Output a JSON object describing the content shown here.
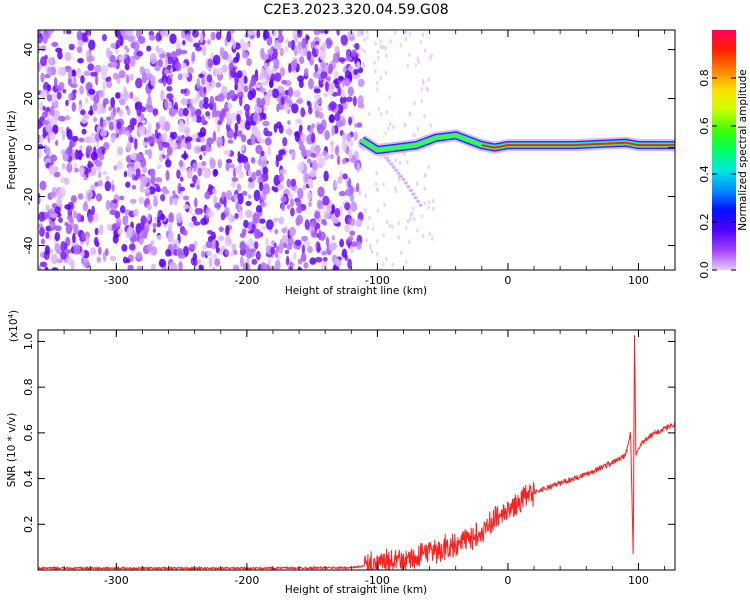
{
  "title": "C2E3.2023.320.04.59.G08",
  "chart_data": [
    {
      "type": "heatmap",
      "xlabel": "Height of straight line (km)",
      "ylabel": "Frequency (Hz)",
      "xlim": [
        -360,
        128
      ],
      "ylim": [
        -50,
        48
      ],
      "x_ticks": [
        -300,
        -200,
        -100,
        0,
        100
      ],
      "y_ticks": [
        -40,
        -20,
        0,
        20,
        40
      ],
      "colorbar": {
        "label": "Normalized spectral amplitude",
        "range": [
          0,
          1
        ],
        "ticks": [
          0.0,
          0.2,
          0.4,
          0.6,
          0.8
        ],
        "colors": [
          "#e8ccff",
          "#a040ff",
          "#5000ff",
          "#0010ff",
          "#0090ff",
          "#00e8e0",
          "#00ff60",
          "#40ff00",
          "#c8ff00",
          "#ffe000",
          "#ff8000",
          "#ff2000",
          "#ff0060"
        ]
      },
      "noise_region_x": [
        -360,
        -112
      ],
      "signal_track": [
        {
          "x": -112,
          "y": 3
        },
        {
          "x": -100,
          "y": -1
        },
        {
          "x": -85,
          "y": 0
        },
        {
          "x": -70,
          "y": 1
        },
        {
          "x": -55,
          "y": 4
        },
        {
          "x": -40,
          "y": 5
        },
        {
          "x": -30,
          "y": 3
        },
        {
          "x": -20,
          "y": 1
        },
        {
          "x": -10,
          "y": 0
        },
        {
          "x": 0,
          "y": 1
        },
        {
          "x": 20,
          "y": 1
        },
        {
          "x": 50,
          "y": 1
        },
        {
          "x": 90,
          "y": 2
        },
        {
          "x": 100,
          "y": 1
        },
        {
          "x": 128,
          "y": 1
        }
      ],
      "secondary_branch": [
        {
          "x": -95,
          "y": -3
        },
        {
          "x": -80,
          "y": -13
        },
        {
          "x": -65,
          "y": -25
        }
      ]
    },
    {
      "type": "line",
      "xlabel": "Height of straight line (km)",
      "ylabel": "SNR (10 * v/v)",
      "y_multiplier": "(x10",
      "y_multiplier_exp": "4",
      "y_multiplier_close": ")",
      "xlim": [
        -360,
        128
      ],
      "ylim": [
        0,
        1.05
      ],
      "x_ticks": [
        -300,
        -200,
        -100,
        0,
        100
      ],
      "y_ticks": [
        0.2,
        0.4,
        0.6,
        0.8,
        1.0
      ],
      "series": [
        {
          "color": "#ff2020",
          "x": [
            -360,
            -300,
            -200,
            -120,
            -100,
            -80,
            -60,
            -40,
            -30,
            -20,
            -10,
            0,
            10,
            20,
            40,
            60,
            80,
            90,
            94,
            96,
            97,
            98,
            100,
            110,
            120,
            128
          ],
          "y": [
            0.008,
            0.008,
            0.008,
            0.01,
            0.025,
            0.04,
            0.07,
            0.11,
            0.14,
            0.17,
            0.22,
            0.26,
            0.3,
            0.34,
            0.38,
            0.42,
            0.47,
            0.5,
            0.6,
            0.05,
            1.05,
            0.5,
            0.54,
            0.59,
            0.62,
            0.64
          ]
        }
      ]
    }
  ]
}
